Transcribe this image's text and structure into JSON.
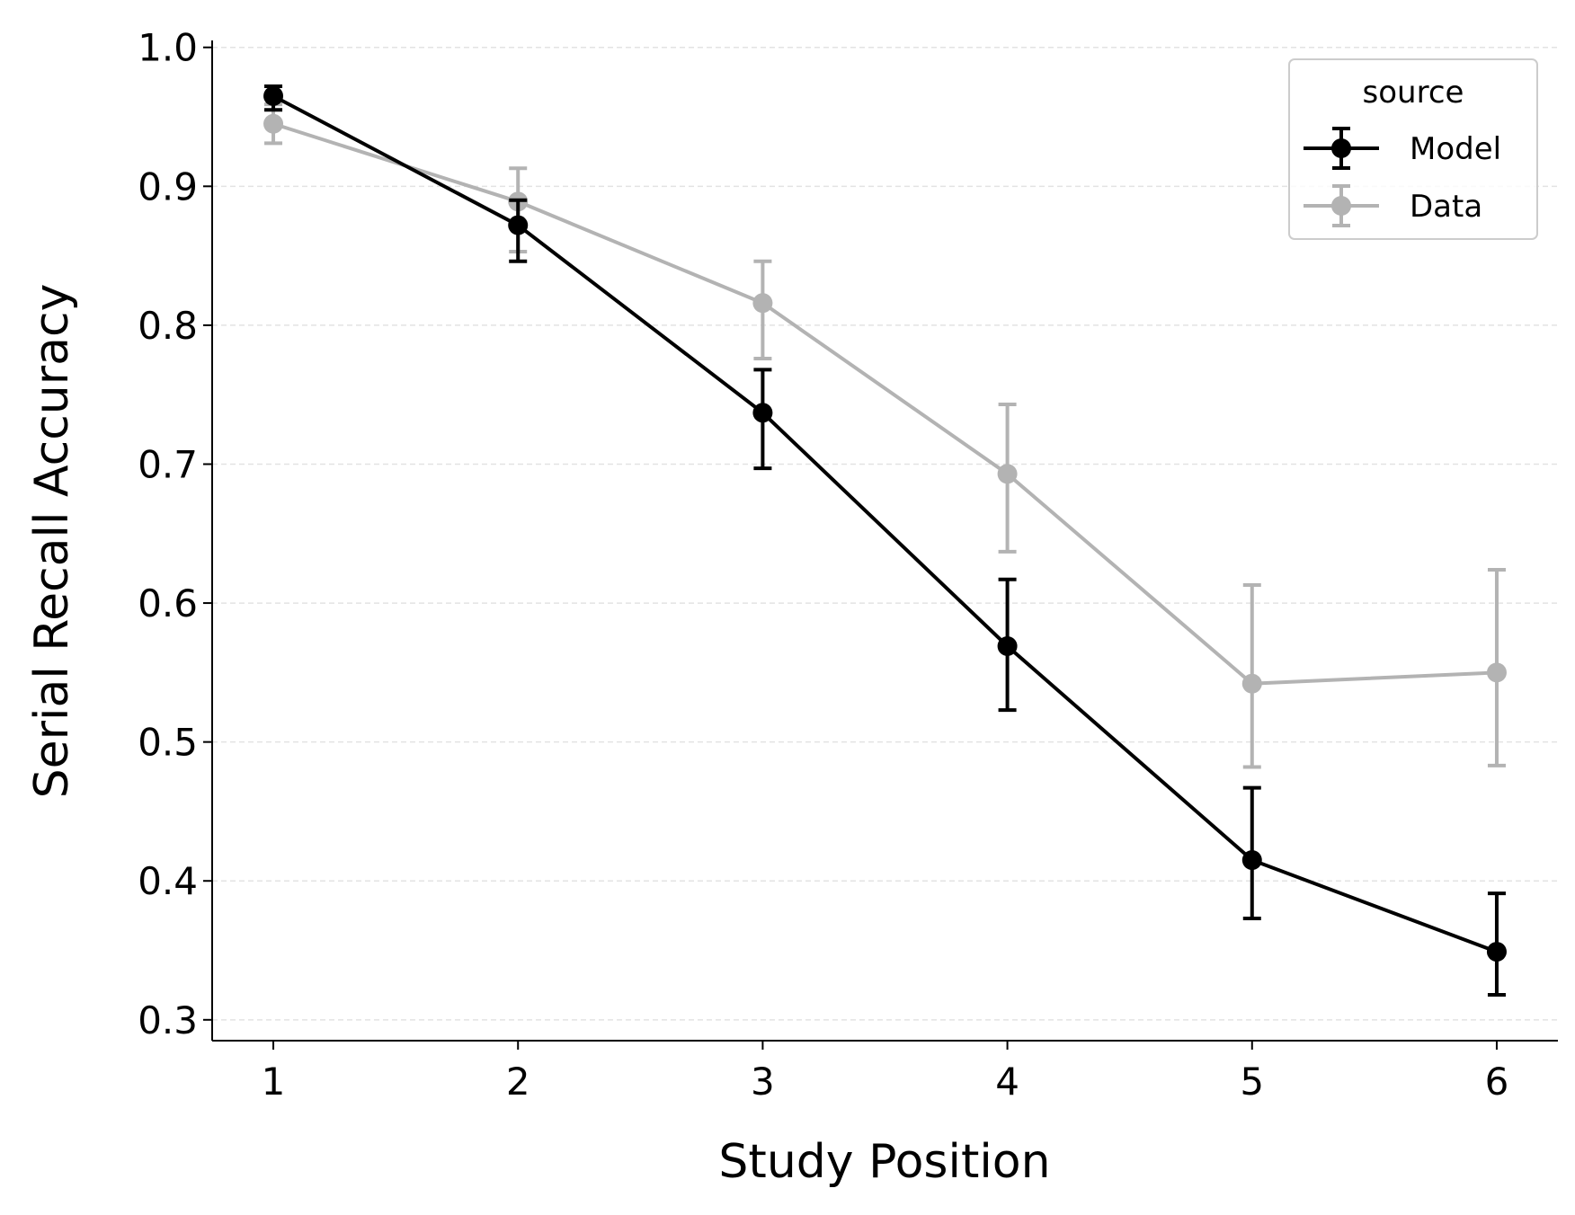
{
  "chart_data": {
    "type": "line",
    "title": "",
    "xlabel": "Study Position",
    "ylabel": "Serial Recall Accuracy",
    "x": [
      1,
      2,
      3,
      4,
      5,
      6
    ],
    "xlim": [
      0.75,
      6.25
    ],
    "ylim": [
      0.285,
      1.005
    ],
    "xticks": [
      "1",
      "2",
      "3",
      "4",
      "5",
      "6"
    ],
    "yticks": [
      "0.3",
      "0.4",
      "0.5",
      "0.6",
      "0.7",
      "0.8",
      "0.9",
      "1.0"
    ],
    "grid": "horizontal dashed",
    "legend": {
      "title": "source",
      "placement": "top-right"
    },
    "series": [
      {
        "name": "Model",
        "color": "#000000",
        "values": [
          0.965,
          0.872,
          0.737,
          0.569,
          0.415,
          0.349
        ],
        "err_low": [
          0.955,
          0.846,
          0.697,
          0.523,
          0.373,
          0.318
        ],
        "err_high": [
          0.972,
          0.89,
          0.768,
          0.617,
          0.467,
          0.391
        ]
      },
      {
        "name": "Data",
        "color": "#b3b3b3",
        "values": [
          0.945,
          0.889,
          0.816,
          0.693,
          0.542,
          0.55
        ],
        "err_low": [
          0.931,
          0.853,
          0.776,
          0.637,
          0.482,
          0.483
        ],
        "err_high": [
          0.959,
          0.913,
          0.846,
          0.743,
          0.613,
          0.624
        ]
      }
    ]
  }
}
